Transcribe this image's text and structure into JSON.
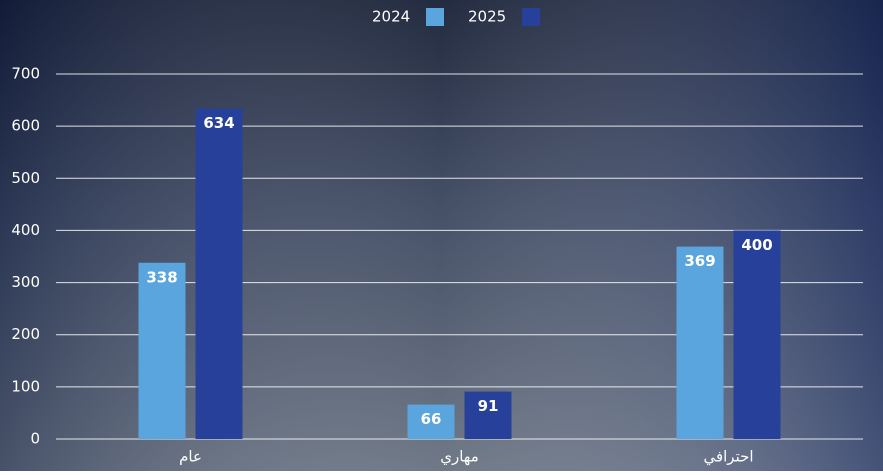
{
  "chart_data": {
    "type": "bar",
    "categories": [
      "عام",
      "مهاري",
      "احترافي"
    ],
    "series": [
      {
        "name": "2024",
        "color": "#5aa5dd",
        "values": [
          338,
          66,
          369
        ]
      },
      {
        "name": "2025",
        "color": "#27409a",
        "values": [
          634,
          91,
          400
        ]
      }
    ],
    "ylim": [
      0,
      700
    ],
    "yticks": [
      0,
      100,
      200,
      300,
      400,
      500,
      600,
      700
    ],
    "grid": true,
    "legend": "top"
  }
}
